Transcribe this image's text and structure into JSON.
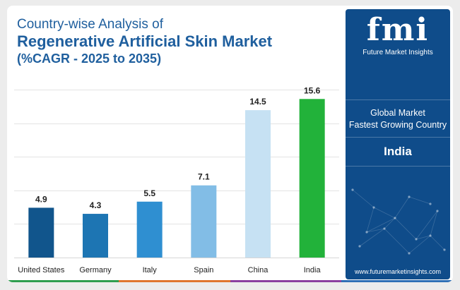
{
  "title": {
    "line1": "Country-wise Analysis of",
    "line2": "Regenerative Artificial Skin Market",
    "line3": "(%CAGR - 2025 to 2035)"
  },
  "panel": {
    "logo": "fmi",
    "logo_sub": "Future Market Insights",
    "label1": "Global Market",
    "label2": "Fastest Growing Country",
    "value": "India",
    "url": "www.futuremarketinsights.com"
  },
  "colors": {
    "title": "#1f5f9e",
    "panel_bg": "#0f4c8a",
    "bottom_strip": [
      "#2f9e4f",
      "#e0762f",
      "#8b3fa0",
      "#2f6fb5"
    ]
  },
  "chart_data": {
    "type": "bar",
    "categories": [
      "United States",
      "Germany",
      "Italy",
      "Spain",
      "China",
      "India"
    ],
    "values": [
      4.9,
      4.3,
      5.5,
      7.1,
      14.5,
      15.6
    ],
    "bar_colors": [
      "#11558c",
      "#1d75b3",
      "#2f8fd1",
      "#82bde6",
      "#c6e1f3",
      "#22b23a"
    ],
    "value_labels": [
      "4.9",
      "4.3",
      "5.5",
      "7.1",
      "14.5",
      "15.6"
    ],
    "ylim": [
      0,
      16.8
    ],
    "grid": true,
    "legend": "none"
  }
}
